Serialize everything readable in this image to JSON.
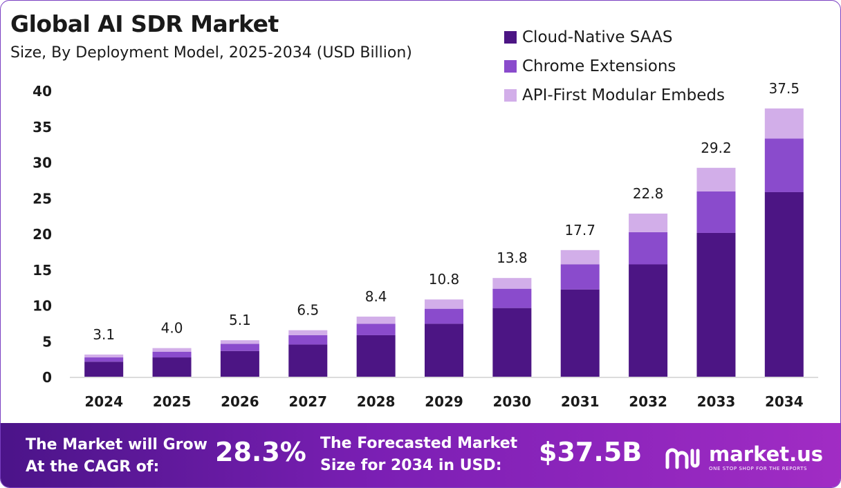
{
  "chart_data": {
    "type": "bar",
    "stacked": true,
    "title": "Global AI SDR Market",
    "subtitle": "Size, By Deployment Model, 2025-2034 (USD Billion)",
    "categories": [
      "2024",
      "2025",
      "2026",
      "2027",
      "2028",
      "2029",
      "2030",
      "2031",
      "2032",
      "2033",
      "2034"
    ],
    "series": [
      {
        "name": "Cloud-Native SAAS",
        "color": "#4c1584",
        "values": [
          2.1,
          2.7,
          3.6,
          4.5,
          5.8,
          7.4,
          9.6,
          12.2,
          15.7,
          20.1,
          25.8
        ]
      },
      {
        "name": "Chrome Extensions",
        "color": "#8a4bcc",
        "values": [
          0.6,
          0.8,
          1.0,
          1.3,
          1.6,
          2.1,
          2.7,
          3.5,
          4.5,
          5.8,
          7.5
        ]
      },
      {
        "name": "API-First Modular Embeds",
        "color": "#d2aee9",
        "values": [
          0.4,
          0.5,
          0.5,
          0.7,
          1.0,
          1.3,
          1.5,
          2.0,
          2.6,
          3.3,
          4.2
        ]
      }
    ],
    "totals": [
      "3.1",
      "4.0",
      "5.1",
      "6.5",
      "8.4",
      "10.8",
      "13.8",
      "17.7",
      "22.8",
      "29.2",
      "37.5"
    ],
    "ylim": [
      0,
      40
    ],
    "yticks": [
      0,
      5,
      10,
      15,
      20,
      25,
      30,
      35,
      40
    ],
    "xlabel": "",
    "ylabel": "",
    "grid": false,
    "legend_position": "top-right"
  },
  "footer": {
    "cagr_label_line1": "The Market will Grow",
    "cagr_label_line2": "At the CAGR of:",
    "cagr_value": "28.3%",
    "forecast_label_line1": "The Forecasted Market",
    "forecast_label_line2": "Size for 2034 in USD:",
    "forecast_value": "$37.5B",
    "brand_name": "market.us",
    "brand_tagline": "ONE STOP SHOP FOR THE REPORTS",
    "background_colors": [
      "#4b1489",
      "#a12cc4"
    ]
  }
}
